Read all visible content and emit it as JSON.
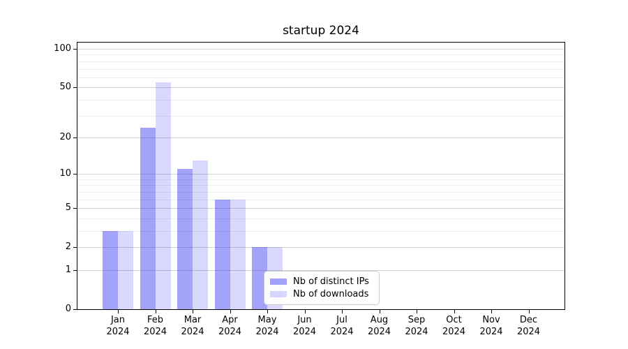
{
  "chart_data": {
    "type": "bar",
    "title": "startup 2024",
    "categories": [
      "Jan",
      "Feb",
      "Mar",
      "Apr",
      "May",
      "Jun",
      "Jul",
      "Aug",
      "Sep",
      "Oct",
      "Nov",
      "Dec"
    ],
    "x_year_label": "2024",
    "series": [
      {
        "name": "Nb of distinct IPs",
        "color": "rgba(0,0,240,0.36)",
        "values": [
          3,
          24,
          11,
          6,
          2,
          0,
          0,
          0,
          0,
          0,
          0,
          0
        ]
      },
      {
        "name": "Nb of downloads",
        "color": "rgba(0,0,240,0.15)",
        "values": [
          3,
          55,
          13,
          6,
          2,
          0,
          0,
          0,
          0,
          0,
          0,
          0
        ]
      }
    ],
    "yscale": "log1p",
    "ylim": [
      0,
      113
    ],
    "yticks": [
      0,
      1,
      2,
      5,
      10,
      20,
      50,
      100
    ],
    "minor_gridlines": [
      3,
      4,
      6,
      7,
      8,
      9,
      30,
      40,
      60,
      70,
      80,
      90,
      110
    ],
    "grid": true,
    "legend_position": "lower center",
    "colors": {
      "bar_dark": "#a6a6fa",
      "bar_light": "#dbdbfc",
      "grid_major": "#d4d4d4",
      "grid_minor": "#ededed"
    }
  }
}
